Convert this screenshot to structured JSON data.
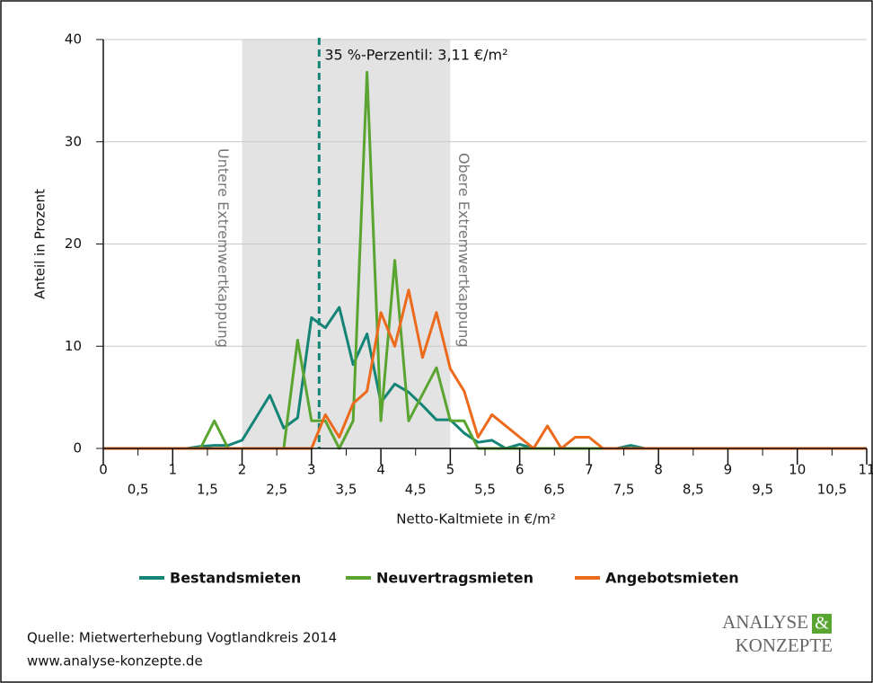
{
  "chart_data": {
    "type": "line",
    "x_label": "Netto-Kaltmiete in €/m²",
    "y_label": "Anteil in Prozent",
    "x": [
      0,
      0.2,
      0.4,
      0.6,
      0.8,
      1,
      1.2,
      1.4,
      1.6,
      1.8,
      2,
      2.2,
      2.4,
      2.6,
      2.8,
      3,
      3.2,
      3.4,
      3.6,
      3.8,
      4,
      4.2,
      4.4,
      4.6,
      4.8,
      5,
      5.2,
      5.4,
      5.6,
      5.8,
      6,
      6.2,
      6.4,
      6.6,
      6.8,
      7,
      7.2,
      7.4,
      7.6,
      7.8,
      8,
      8.2,
      8.4,
      8.6,
      8.8,
      9,
      9.2,
      9.4,
      9.6,
      9.8,
      10,
      10.2,
      10.4,
      10.6,
      10.8,
      11
    ],
    "series": [
      {
        "name": "Bestandsmieten",
        "color": "#138476",
        "values": [
          0,
          0,
          0,
          0,
          0,
          0,
          0,
          0.2,
          0.3,
          0.3,
          0.8,
          3,
          5.2,
          2,
          3,
          12.8,
          11.8,
          13.8,
          8.2,
          11.2,
          4.5,
          6.3,
          5.5,
          4.2,
          2.8,
          2.8,
          1.5,
          0.6,
          0.8,
          0,
          0.4,
          0,
          0,
          0,
          0,
          0,
          0,
          0,
          0.3,
          0,
          0,
          0,
          0,
          0,
          0,
          0,
          0,
          0,
          0,
          0,
          0,
          0,
          0,
          0,
          0,
          0
        ]
      },
      {
        "name": "Neuvertragsmieten",
        "color": "#5aa532",
        "values": [
          0,
          0,
          0,
          0,
          0,
          0,
          0,
          0,
          2.7,
          0,
          0,
          0,
          0,
          0,
          10.6,
          2.7,
          2.7,
          0,
          2.7,
          36.8,
          2.7,
          18.4,
          2.7,
          5.3,
          7.9,
          2.7,
          2.7,
          0,
          0,
          0,
          0,
          0,
          0,
          0,
          0,
          0,
          0,
          0,
          0,
          0,
          0,
          0,
          0,
          0,
          0,
          0,
          0,
          0,
          0,
          0,
          0,
          0,
          0,
          0,
          0,
          0
        ]
      },
      {
        "name": "Angebotsmieten",
        "color": "#ec6a1c",
        "values": [
          0,
          0,
          0,
          0,
          0,
          0,
          0,
          0,
          0,
          0,
          0,
          0,
          0,
          0,
          0,
          0,
          3.3,
          1.1,
          4.4,
          5.6,
          13.3,
          10,
          15.5,
          8.9,
          13.3,
          7.8,
          5.6,
          1.1,
          3.3,
          2.2,
          1.1,
          0,
          2.2,
          0,
          1.1,
          1.1,
          0,
          0,
          0,
          0,
          0,
          0,
          0,
          0,
          0,
          0,
          0,
          0,
          0,
          0,
          0,
          0,
          0,
          0,
          0,
          0
        ]
      }
    ],
    "xlim": [
      0,
      11
    ],
    "ylim": [
      0,
      40
    ],
    "xticks": [
      0,
      1,
      2,
      3,
      4,
      5,
      6,
      7,
      8,
      9,
      10,
      11
    ],
    "xticks_minor": [
      {
        "value": 0.5,
        "label": "0,5"
      },
      {
        "value": 1.5,
        "label": "1,5"
      },
      {
        "value": 2.5,
        "label": "2,5"
      },
      {
        "value": 3.5,
        "label": "3,5"
      },
      {
        "value": 4.5,
        "label": "4,5"
      },
      {
        "value": 5.5,
        "label": "5,5"
      },
      {
        "value": 6.5,
        "label": "6,5"
      },
      {
        "value": 7.5,
        "label": "7,5"
      },
      {
        "value": 8.5,
        "label": "8,5"
      },
      {
        "value": 9.5,
        "label": "9,5"
      },
      {
        "value": 10.5,
        "label": "10,5"
      }
    ],
    "yticks": [
      0,
      10,
      20,
      30,
      40
    ],
    "grid": true,
    "shaded_range": [
      2,
      5
    ],
    "lower_cap_label": "Untere Extremwertkappung",
    "upper_cap_label": "Obere Extremwertkappung",
    "percentile": {
      "value": 3.11,
      "label": "35 %-Perzentil: 3,11 €/m²"
    },
    "legend": "bottom"
  },
  "source": [
    "Quelle: Mietwerterhebung Vogtlandkreis 2014",
    "www.analyse-konzepte.de"
  ],
  "logo": {
    "line1": "ANALYSE",
    "amp": "&",
    "line2": "KONZEPTE"
  }
}
